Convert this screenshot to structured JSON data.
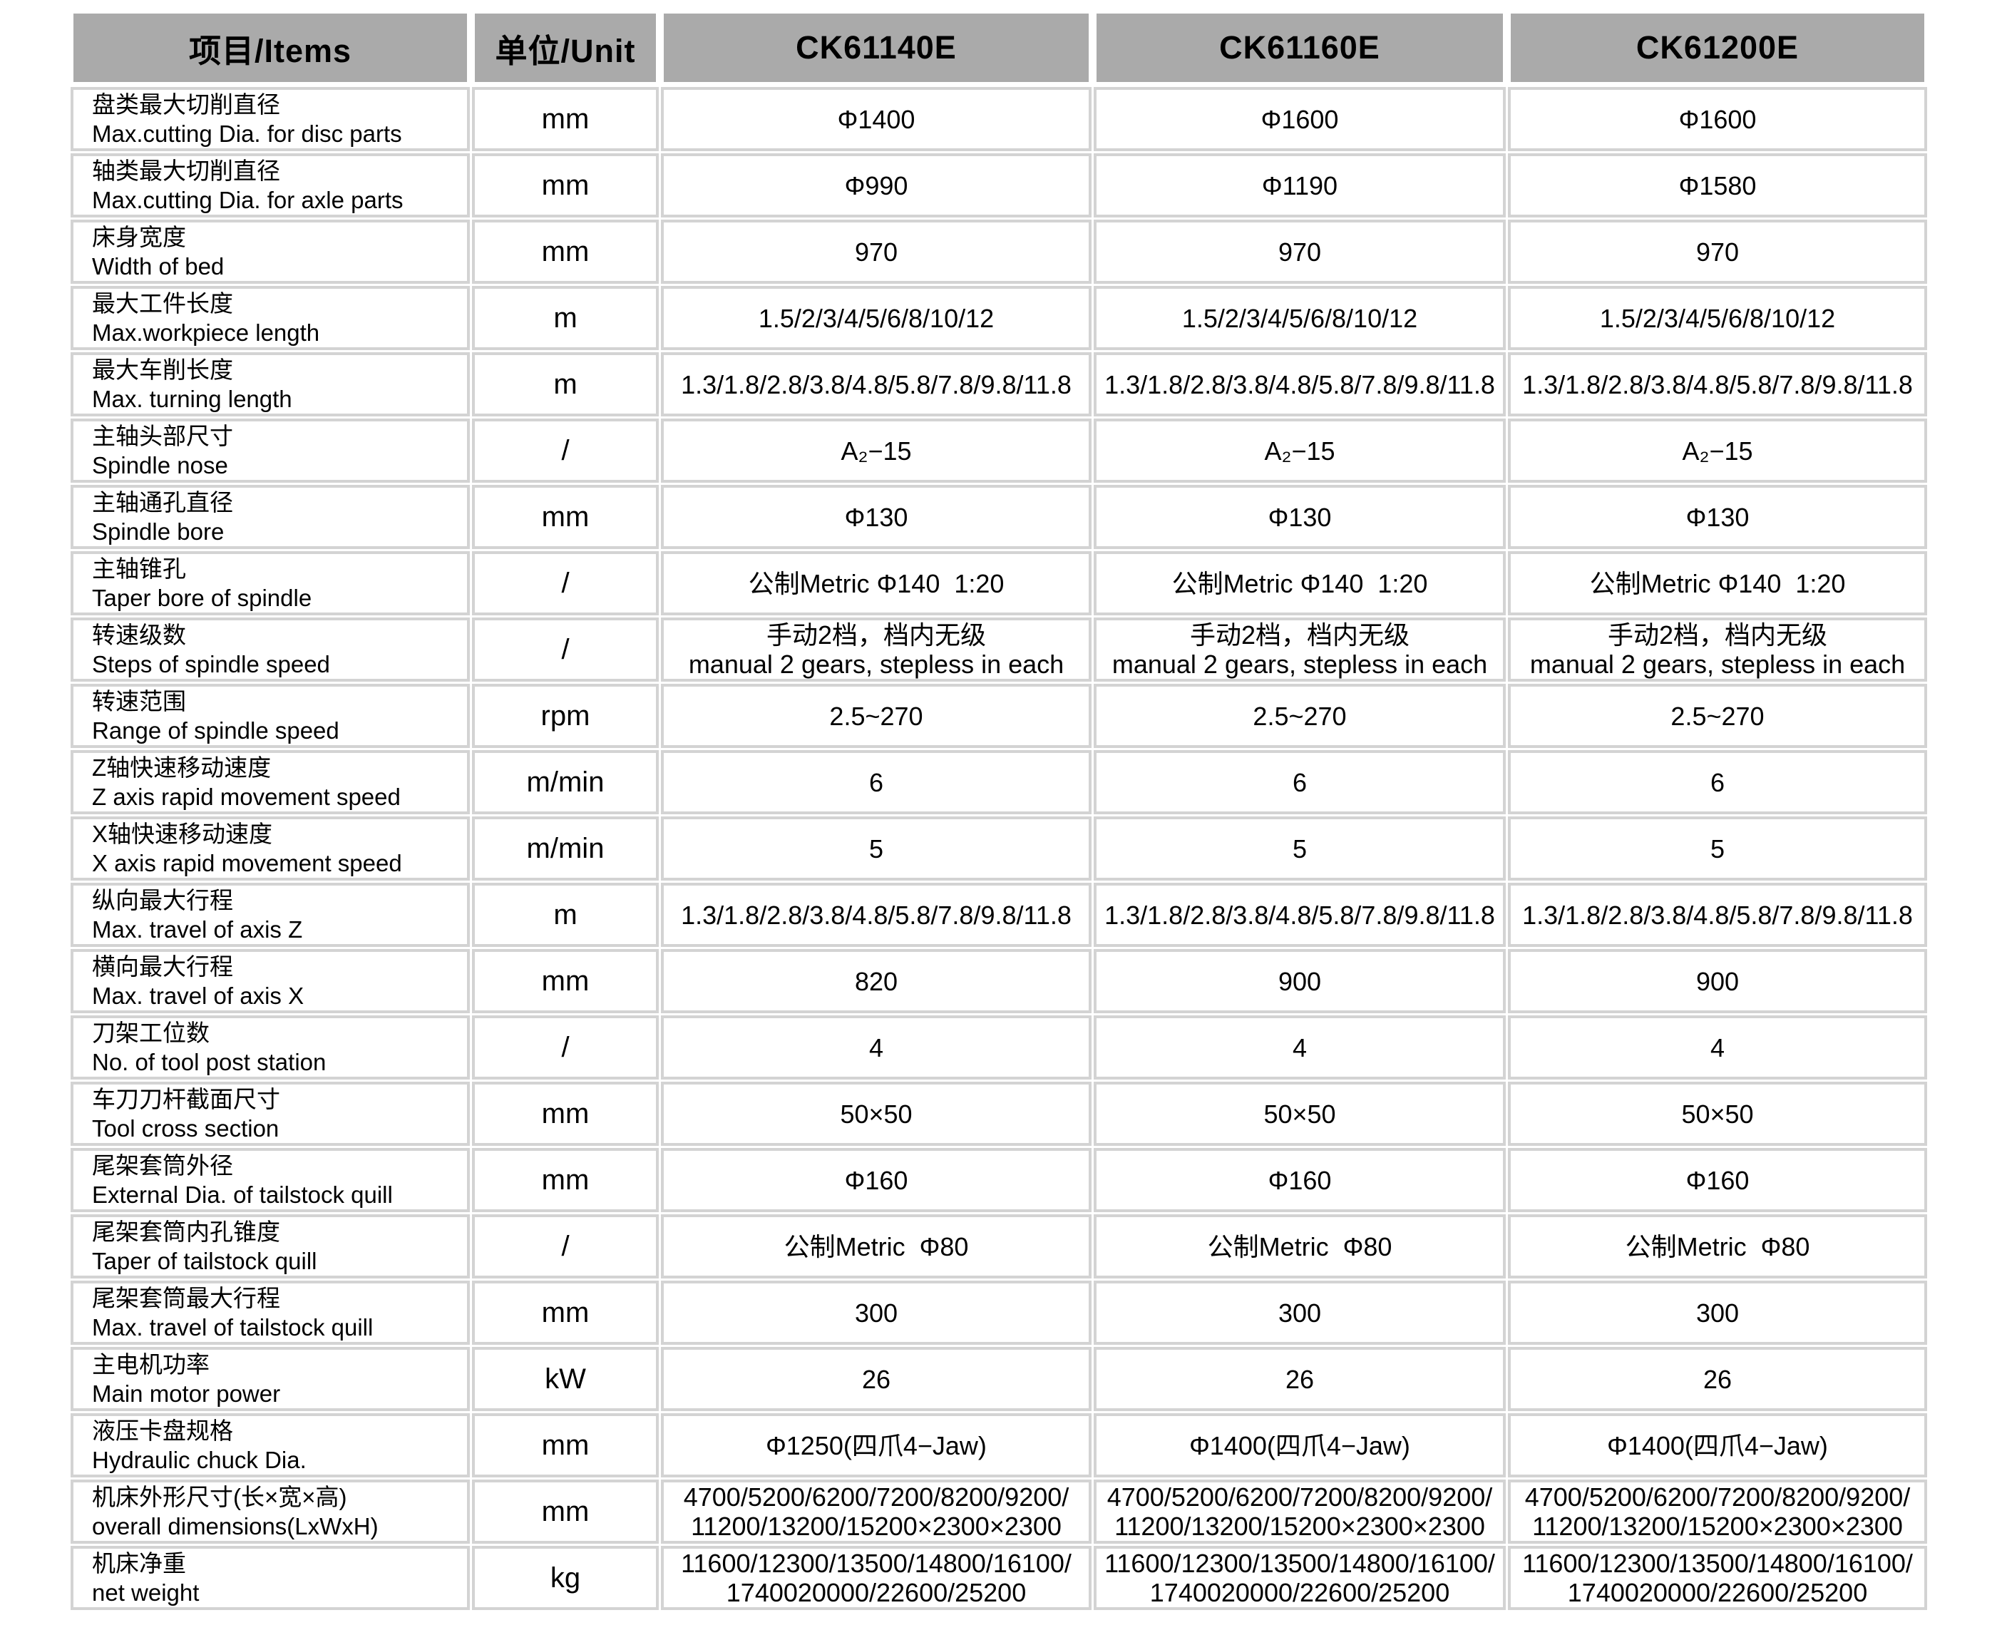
{
  "colors": {
    "header_bg": "#aaaaaa",
    "grid": "#d3d3d3",
    "text": "#000000",
    "page_bg": "#ffffff"
  },
  "table": {
    "header": {
      "items_label": "项目/Items",
      "unit_label": "单位/Unit",
      "models": [
        "CK61140E",
        "CK61160E",
        "CK61200E"
      ]
    },
    "rows": [
      {
        "name_cn": "盘类最大切削直径",
        "name_en": "Max.cutting Dia. for disc parts",
        "unit": "mm",
        "values": [
          "Φ1400",
          "Φ1600",
          "Φ1600"
        ]
      },
      {
        "name_cn": "轴类最大切削直径",
        "name_en": "Max.cutting Dia. for axle parts",
        "unit": "mm",
        "values": [
          "Φ990",
          "Φ1190",
          "Φ1580"
        ]
      },
      {
        "name_cn": "床身宽度",
        "name_en": "Width of bed",
        "unit": "mm",
        "values": [
          "970",
          "970",
          "970"
        ]
      },
      {
        "name_cn": "最大工件长度",
        "name_en": "Max.workpiece length",
        "unit": "m",
        "values": [
          "1.5/2/3/4/5/6/8/10/12",
          "1.5/2/3/4/5/6/8/10/12",
          "1.5/2/3/4/5/6/8/10/12"
        ]
      },
      {
        "name_cn": "最大车削长度",
        "name_en": "Max. turning length",
        "unit": "m",
        "values": [
          "1.3/1.8/2.8/3.8/4.8/5.8/7.8/9.8/11.8",
          "1.3/1.8/2.8/3.8/4.8/5.8/7.8/9.8/11.8",
          "1.3/1.8/2.8/3.8/4.8/5.8/7.8/9.8/11.8"
        ]
      },
      {
        "name_cn": "主轴头部尺寸",
        "name_en": "Spindle nose",
        "unit": "/",
        "values": [
          "A₂−15",
          "A₂−15",
          "A₂−15"
        ]
      },
      {
        "name_cn": "主轴通孔直径",
        "name_en": "Spindle bore",
        "unit": "mm",
        "values": [
          "Φ130",
          "Φ130",
          "Φ130"
        ]
      },
      {
        "name_cn": "主轴锥孔",
        "name_en": "Taper bore of spindle",
        "unit": "/",
        "values": [
          "公制Metric Φ140  1:20",
          "公制Metric Φ140  1:20",
          "公制Metric Φ140  1:20"
        ]
      },
      {
        "name_cn": "转速级数",
        "name_en": "Steps of spindle speed",
        "unit": "/",
        "values": [
          "手动2档，档内无级\nmanual 2 gears, stepless in each",
          "手动2档，档内无级\nmanual 2 gears, stepless in each",
          "手动2档，档内无级\nmanual 2 gears, stepless in each"
        ]
      },
      {
        "name_cn": "转速范围",
        "name_en": "Range of spindle speed",
        "unit": "rpm",
        "values": [
          "2.5~270",
          "2.5~270",
          "2.5~270"
        ]
      },
      {
        "name_cn": "Z轴快速移动速度",
        "name_en": "Z axis rapid movement speed",
        "unit": "m/min",
        "values": [
          "6",
          "6",
          "6"
        ]
      },
      {
        "name_cn": "X轴快速移动速度",
        "name_en": "X axis rapid movement speed",
        "unit": "m/min",
        "values": [
          "5",
          "5",
          "5"
        ]
      },
      {
        "name_cn": "纵向最大行程",
        "name_en": "Max. travel of axis Z",
        "unit": "m",
        "values": [
          "1.3/1.8/2.8/3.8/4.8/5.8/7.8/9.8/11.8",
          "1.3/1.8/2.8/3.8/4.8/5.8/7.8/9.8/11.8",
          "1.3/1.8/2.8/3.8/4.8/5.8/7.8/9.8/11.8"
        ]
      },
      {
        "name_cn": "横向最大行程",
        "name_en": "Max. travel of axis X",
        "unit": "mm",
        "values": [
          "820",
          "900",
          "900"
        ]
      },
      {
        "name_cn": "刀架工位数",
        "name_en": "No. of tool post station",
        "unit": "/",
        "values": [
          "4",
          "4",
          "4"
        ]
      },
      {
        "name_cn": "车刀刀杆截面尺寸",
        "name_en": "Tool cross section",
        "unit": "mm",
        "values": [
          "50×50",
          "50×50",
          "50×50"
        ]
      },
      {
        "name_cn": "尾架套筒外径",
        "name_en": "External Dia. of tailstock quill",
        "unit": "mm",
        "values": [
          "Φ160",
          "Φ160",
          "Φ160"
        ]
      },
      {
        "name_cn": "尾架套筒内孔锥度",
        "name_en": "Taper of tailstock quill",
        "unit": "/",
        "values": [
          "公制Metric  Φ80",
          "公制Metric  Φ80",
          "公制Metric  Φ80"
        ]
      },
      {
        "name_cn": "尾架套筒最大行程",
        "name_en": "Max. travel of tailstock quill",
        "unit": "mm",
        "values": [
          "300",
          "300",
          "300"
        ]
      },
      {
        "name_cn": "主电机功率",
        "name_en": "Main motor power",
        "unit": "kW",
        "values": [
          "26",
          "26",
          "26"
        ]
      },
      {
        "name_cn": "液压卡盘规格",
        "name_en": "Hydraulic chuck Dia.",
        "unit": "mm",
        "values": [
          "Φ1250(四爪4−Jaw)",
          "Φ1400(四爪4−Jaw)",
          "Φ1400(四爪4−Jaw)"
        ]
      },
      {
        "name_cn": "机床外形尺寸(长×宽×高)",
        "name_en": "overall  dimensions(LxWxH)",
        "unit": "mm",
        "values": [
          "4700/5200/6200/7200/8200/9200/\n11200/13200/15200×2300×2300",
          "4700/5200/6200/7200/8200/9200/\n11200/13200/15200×2300×2300",
          "4700/5200/6200/7200/8200/9200/\n11200/13200/15200×2300×2300"
        ]
      },
      {
        "name_cn": "机床净重",
        "name_en": "net weight",
        "unit": "kg",
        "values": [
          "11600/12300/13500/14800/16100/\n1740020000/22600/25200",
          "11600/12300/13500/14800/16100/\n1740020000/22600/25200",
          "11600/12300/13500/14800/16100/\n1740020000/22600/25200"
        ]
      }
    ]
  }
}
